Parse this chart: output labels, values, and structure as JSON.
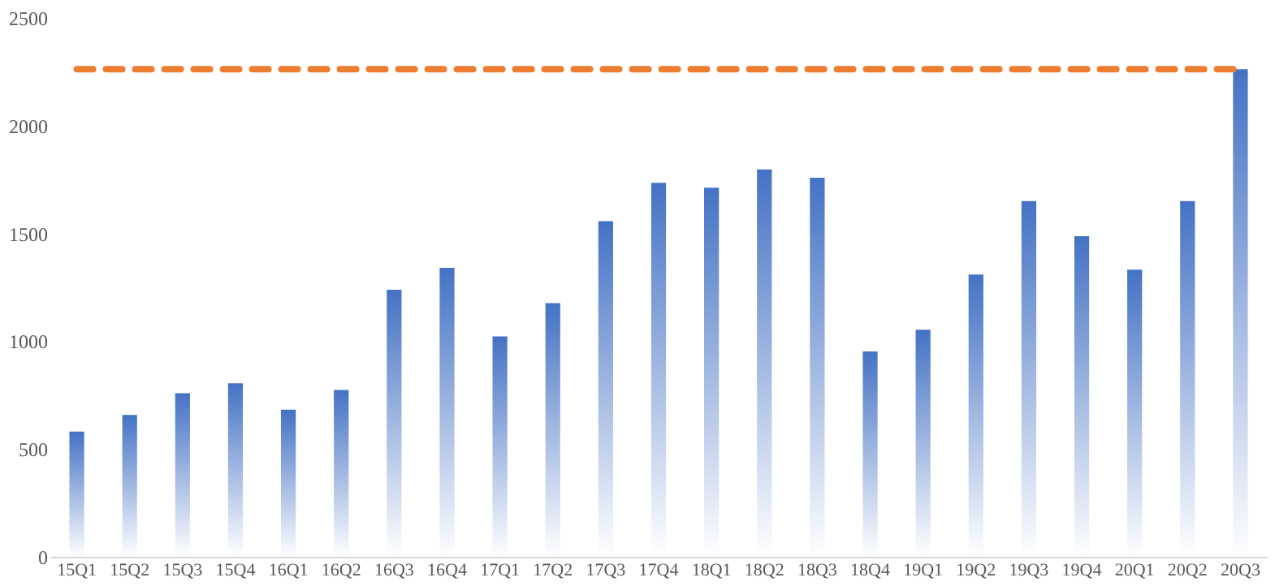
{
  "chart_data": {
    "type": "bar",
    "categories": [
      "15Q1",
      "15Q2",
      "15Q3",
      "15Q4",
      "16Q1",
      "16Q2",
      "16Q3",
      "16Q4",
      "17Q1",
      "17Q2",
      "17Q3",
      "17Q4",
      "18Q1",
      "18Q2",
      "18Q3",
      "18Q4",
      "19Q1",
      "19Q2",
      "19Q3",
      "19Q4",
      "20Q1",
      "20Q2",
      "20Q3"
    ],
    "series": [
      {
        "color": "#4472c4",
        "values": [
          581,
          658,
          759,
          805,
          682,
          774,
          1239,
          1340,
          1022,
          1177,
          1557,
          1735,
          1712,
          1797,
          1758,
          953,
          1053,
          1309,
          1650,
          1487,
          1332,
          1650,
          2262
        ]
      }
    ],
    "ylim": [
      0,
      2500
    ],
    "yticks": [
      0,
      500,
      1000,
      1500,
      2000,
      2500
    ],
    "ref_lines": [
      {
        "axis": "y",
        "value": 2262,
        "color": "#ed7d31",
        "line_style": "dashed"
      }
    ],
    "grid": false
  }
}
